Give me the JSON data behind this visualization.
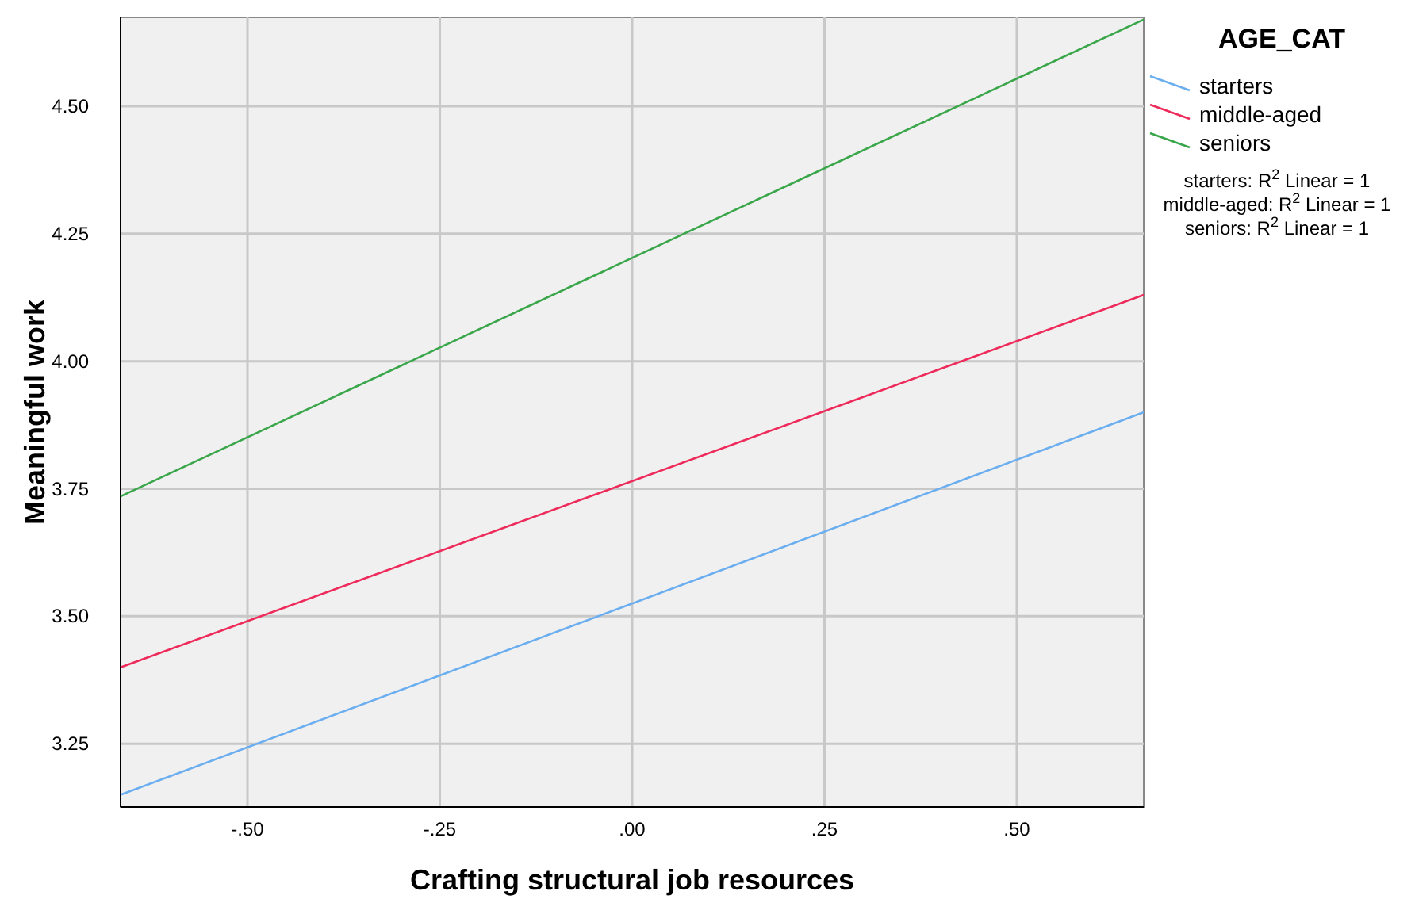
{
  "chart_data": {
    "type": "line",
    "xlabel": "Crafting structural job resources",
    "ylabel": "Meaningful work",
    "legend_title": "AGE_CAT",
    "legend": "right",
    "grid": true,
    "marker": "none",
    "line_style": "solid",
    "x": [
      -0.665,
      0.665
    ],
    "xlim": [
      -0.665,
      0.665
    ],
    "xticks": [
      {
        "value": -0.5,
        "label": "-.50"
      },
      {
        "value": -0.25,
        "label": "-.25"
      },
      {
        "value": 0,
        "label": ".00"
      },
      {
        "value": 0.25,
        "label": ".25"
      },
      {
        "value": 0.5,
        "label": ".50"
      }
    ],
    "ylim": [
      3.126,
      4.674
    ],
    "yticks": [
      {
        "value": 3.25,
        "label": "3.25"
      },
      {
        "value": 3.5,
        "label": "3.50"
      },
      {
        "value": 3.75,
        "label": "3.75"
      },
      {
        "value": 4.0,
        "label": "4.00"
      },
      {
        "value": 4.25,
        "label": "4.25"
      },
      {
        "value": 4.5,
        "label": "4.50"
      }
    ],
    "series": [
      {
        "name": "starters",
        "color": "#6aaef0",
        "values": [
          3.15,
          3.9
        ]
      },
      {
        "name": "middle-aged",
        "color": "#ee2a5a",
        "values": [
          3.4,
          4.13
        ]
      },
      {
        "name": "seniors",
        "color": "#3aa64a",
        "values": [
          3.735,
          4.67
        ]
      }
    ],
    "annotations": [
      "starters: R$^{2}$ Linear = 1",
      "middle-aged: R$^{2}$ Linear = 1",
      "seniors: R$^{2}$ Linear = 1"
    ]
  }
}
